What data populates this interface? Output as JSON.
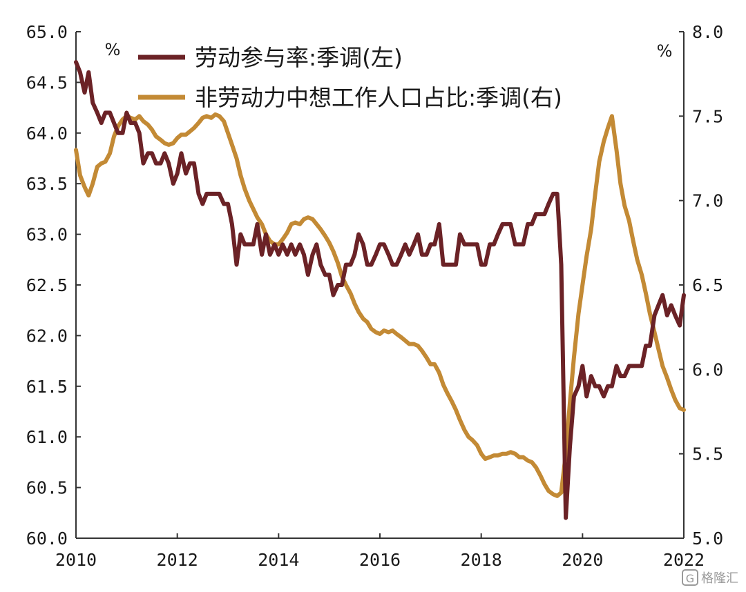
{
  "chart_data": {
    "type": "line",
    "title": "",
    "left_axis": {
      "unit": "%",
      "ylim": [
        60.0,
        65.0
      ],
      "ticks": [
        "60.0",
        "60.5",
        "61.0",
        "61.5",
        "62.0",
        "62.5",
        "63.0",
        "63.5",
        "64.0",
        "64.5",
        "65.0"
      ]
    },
    "right_axis": {
      "unit": "%",
      "ylim": [
        5.0,
        8.0
      ],
      "ticks": [
        "5.0",
        "5.5",
        "6.0",
        "6.5",
        "7.0",
        "7.5",
        "8.0"
      ]
    },
    "x_axis": {
      "xlim": [
        2010.0,
        2022.0
      ],
      "tick_labels": [
        "2010",
        "2012",
        "2014",
        "2016",
        "2018",
        "2020",
        "2022"
      ]
    },
    "grid": false,
    "legend_position": "top",
    "series": [
      {
        "name": "劳动参与率:季调(左)",
        "axis": "left",
        "color": "#6b2226",
        "points": [
          [
            2010.0,
            64.7
          ],
          [
            2010.08,
            64.6
          ],
          [
            2010.17,
            64.4
          ],
          [
            2010.25,
            64.6
          ],
          [
            2010.33,
            64.3
          ],
          [
            2010.42,
            64.2
          ],
          [
            2010.5,
            64.1
          ],
          [
            2010.58,
            64.2
          ],
          [
            2010.67,
            64.2
          ],
          [
            2010.75,
            64.1
          ],
          [
            2010.83,
            64.0
          ],
          [
            2010.92,
            64.0
          ],
          [
            2011.0,
            64.2
          ],
          [
            2011.08,
            64.1
          ],
          [
            2011.17,
            64.1
          ],
          [
            2011.25,
            64.0
          ],
          [
            2011.33,
            63.7
          ],
          [
            2011.42,
            63.8
          ],
          [
            2011.5,
            63.8
          ],
          [
            2011.58,
            63.7
          ],
          [
            2011.67,
            63.7
          ],
          [
            2011.75,
            63.8
          ],
          [
            2011.83,
            63.7
          ],
          [
            2011.92,
            63.5
          ],
          [
            2012.0,
            63.6
          ],
          [
            2012.08,
            63.8
          ],
          [
            2012.17,
            63.6
          ],
          [
            2012.25,
            63.7
          ],
          [
            2012.33,
            63.7
          ],
          [
            2012.42,
            63.4
          ],
          [
            2012.5,
            63.3
          ],
          [
            2012.58,
            63.4
          ],
          [
            2012.67,
            63.4
          ],
          [
            2012.75,
            63.4
          ],
          [
            2012.83,
            63.4
          ],
          [
            2012.92,
            63.3
          ],
          [
            2013.0,
            63.3
          ],
          [
            2013.08,
            63.1
          ],
          [
            2013.17,
            62.7
          ],
          [
            2013.25,
            63.0
          ],
          [
            2013.33,
            62.9
          ],
          [
            2013.42,
            62.9
          ],
          [
            2013.5,
            62.9
          ],
          [
            2013.58,
            63.1
          ],
          [
            2013.67,
            62.8
          ],
          [
            2013.75,
            63.0
          ],
          [
            2013.83,
            62.8
          ],
          [
            2013.92,
            62.9
          ],
          [
            2014.0,
            62.8
          ],
          [
            2014.08,
            62.9
          ],
          [
            2014.17,
            62.8
          ],
          [
            2014.25,
            62.9
          ],
          [
            2014.33,
            62.8
          ],
          [
            2014.42,
            62.9
          ],
          [
            2014.5,
            62.8
          ],
          [
            2014.58,
            62.6
          ],
          [
            2014.67,
            62.8
          ],
          [
            2014.75,
            62.9
          ],
          [
            2014.83,
            62.7
          ],
          [
            2014.92,
            62.6
          ],
          [
            2015.0,
            62.6
          ],
          [
            2015.08,
            62.4
          ],
          [
            2015.17,
            62.5
          ],
          [
            2015.25,
            62.5
          ],
          [
            2015.33,
            62.7
          ],
          [
            2015.42,
            62.7
          ],
          [
            2015.5,
            62.8
          ],
          [
            2015.58,
            63.0
          ],
          [
            2015.67,
            62.9
          ],
          [
            2015.75,
            62.7
          ],
          [
            2015.83,
            62.7
          ],
          [
            2015.92,
            62.8
          ],
          [
            2016.0,
            62.9
          ],
          [
            2016.08,
            62.9
          ],
          [
            2016.17,
            62.8
          ],
          [
            2016.25,
            62.7
          ],
          [
            2016.33,
            62.7
          ],
          [
            2016.42,
            62.8
          ],
          [
            2016.5,
            62.9
          ],
          [
            2016.58,
            62.8
          ],
          [
            2016.67,
            62.9
          ],
          [
            2016.75,
            63.0
          ],
          [
            2016.83,
            62.8
          ],
          [
            2016.92,
            62.8
          ],
          [
            2017.0,
            62.9
          ],
          [
            2017.08,
            62.9
          ],
          [
            2017.17,
            63.1
          ],
          [
            2017.25,
            62.7
          ],
          [
            2017.33,
            62.7
          ],
          [
            2017.42,
            62.7
          ],
          [
            2017.5,
            62.7
          ],
          [
            2017.58,
            63.0
          ],
          [
            2017.67,
            62.9
          ],
          [
            2017.75,
            62.9
          ],
          [
            2017.83,
            62.9
          ],
          [
            2017.92,
            62.9
          ],
          [
            2018.0,
            62.7
          ],
          [
            2018.08,
            62.7
          ],
          [
            2018.17,
            62.9
          ],
          [
            2018.25,
            62.9
          ],
          [
            2018.33,
            63.0
          ],
          [
            2018.42,
            63.1
          ],
          [
            2018.5,
            63.1
          ],
          [
            2018.58,
            63.1
          ],
          [
            2018.67,
            62.9
          ],
          [
            2018.75,
            62.9
          ],
          [
            2018.83,
            62.9
          ],
          [
            2018.92,
            63.1
          ],
          [
            2019.0,
            63.1
          ],
          [
            2019.08,
            63.2
          ],
          [
            2019.17,
            63.2
          ],
          [
            2019.25,
            63.2
          ],
          [
            2019.33,
            63.3
          ],
          [
            2019.42,
            63.4
          ],
          [
            2019.5,
            63.4
          ],
          [
            2019.58,
            62.7
          ],
          [
            2019.67,
            60.2
          ],
          [
            2019.75,
            60.9
          ],
          [
            2019.83,
            61.4
          ],
          [
            2019.92,
            61.5
          ],
          [
            2020.0,
            61.7
          ],
          [
            2020.08,
            61.4
          ],
          [
            2020.17,
            61.6
          ],
          [
            2020.25,
            61.5
          ],
          [
            2020.33,
            61.5
          ],
          [
            2020.42,
            61.4
          ],
          [
            2020.5,
            61.5
          ],
          [
            2020.58,
            61.5
          ],
          [
            2020.67,
            61.7
          ],
          [
            2020.75,
            61.6
          ],
          [
            2020.83,
            61.6
          ],
          [
            2020.92,
            61.7
          ],
          [
            2021.0,
            61.7
          ],
          [
            2021.08,
            61.7
          ],
          [
            2021.17,
            61.7
          ],
          [
            2021.25,
            61.9
          ],
          [
            2021.33,
            61.9
          ],
          [
            2021.42,
            62.2
          ],
          [
            2021.5,
            62.3
          ],
          [
            2021.58,
            62.4
          ],
          [
            2021.67,
            62.2
          ],
          [
            2021.75,
            62.3
          ],
          [
            2021.83,
            62.2
          ],
          [
            2021.92,
            62.1
          ],
          [
            2022.0,
            62.4
          ]
        ]
      },
      {
        "name": "非劳动力中想工作人口占比:季调(右)",
        "axis": "right",
        "color": "#c38a35",
        "points": [
          [
            2010.0,
            7.3
          ],
          [
            2010.08,
            7.15
          ],
          [
            2010.17,
            7.08
          ],
          [
            2010.25,
            7.03
          ],
          [
            2010.33,
            7.1
          ],
          [
            2010.42,
            7.2
          ],
          [
            2010.5,
            7.22
          ],
          [
            2010.58,
            7.23
          ],
          [
            2010.67,
            7.28
          ],
          [
            2010.75,
            7.38
          ],
          [
            2010.83,
            7.44
          ],
          [
            2010.92,
            7.48
          ],
          [
            2011.0,
            7.5
          ],
          [
            2011.08,
            7.49
          ],
          [
            2011.17,
            7.48
          ],
          [
            2011.25,
            7.5
          ],
          [
            2011.33,
            7.47
          ],
          [
            2011.42,
            7.45
          ],
          [
            2011.5,
            7.42
          ],
          [
            2011.58,
            7.38
          ],
          [
            2011.67,
            7.36
          ],
          [
            2011.75,
            7.34
          ],
          [
            2011.83,
            7.33
          ],
          [
            2011.92,
            7.34
          ],
          [
            2012.0,
            7.37
          ],
          [
            2012.08,
            7.39
          ],
          [
            2012.17,
            7.39
          ],
          [
            2012.25,
            7.41
          ],
          [
            2012.33,
            7.43
          ],
          [
            2012.42,
            7.46
          ],
          [
            2012.5,
            7.49
          ],
          [
            2012.58,
            7.5
          ],
          [
            2012.67,
            7.49
          ],
          [
            2012.75,
            7.51
          ],
          [
            2012.83,
            7.5
          ],
          [
            2012.92,
            7.47
          ],
          [
            2013.0,
            7.4
          ],
          [
            2013.08,
            7.33
          ],
          [
            2013.17,
            7.25
          ],
          [
            2013.25,
            7.15
          ],
          [
            2013.33,
            7.07
          ],
          [
            2013.42,
            7.0
          ],
          [
            2013.5,
            6.95
          ],
          [
            2013.58,
            6.9
          ],
          [
            2013.67,
            6.86
          ],
          [
            2013.75,
            6.8
          ],
          [
            2013.83,
            6.76
          ],
          [
            2013.92,
            6.74
          ],
          [
            2014.0,
            6.74
          ],
          [
            2014.08,
            6.77
          ],
          [
            2014.17,
            6.81
          ],
          [
            2014.25,
            6.86
          ],
          [
            2014.33,
            6.87
          ],
          [
            2014.42,
            6.86
          ],
          [
            2014.5,
            6.89
          ],
          [
            2014.58,
            6.9
          ],
          [
            2014.67,
            6.89
          ],
          [
            2014.75,
            6.86
          ],
          [
            2014.83,
            6.83
          ],
          [
            2014.92,
            6.79
          ],
          [
            2015.0,
            6.75
          ],
          [
            2015.08,
            6.7
          ],
          [
            2015.17,
            6.63
          ],
          [
            2015.25,
            6.55
          ],
          [
            2015.33,
            6.5
          ],
          [
            2015.42,
            6.45
          ],
          [
            2015.5,
            6.39
          ],
          [
            2015.58,
            6.34
          ],
          [
            2015.67,
            6.3
          ],
          [
            2015.75,
            6.28
          ],
          [
            2015.83,
            6.24
          ],
          [
            2015.92,
            6.22
          ],
          [
            2016.0,
            6.21
          ],
          [
            2016.08,
            6.23
          ],
          [
            2016.17,
            6.22
          ],
          [
            2016.25,
            6.23
          ],
          [
            2016.33,
            6.21
          ],
          [
            2016.42,
            6.19
          ],
          [
            2016.5,
            6.17
          ],
          [
            2016.58,
            6.15
          ],
          [
            2016.67,
            6.15
          ],
          [
            2016.75,
            6.14
          ],
          [
            2016.83,
            6.11
          ],
          [
            2016.92,
            6.07
          ],
          [
            2017.0,
            6.03
          ],
          [
            2017.08,
            6.03
          ],
          [
            2017.17,
            5.98
          ],
          [
            2017.25,
            5.91
          ],
          [
            2017.33,
            5.86
          ],
          [
            2017.42,
            5.81
          ],
          [
            2017.5,
            5.76
          ],
          [
            2017.58,
            5.7
          ],
          [
            2017.67,
            5.64
          ],
          [
            2017.75,
            5.6
          ],
          [
            2017.83,
            5.58
          ],
          [
            2017.92,
            5.55
          ],
          [
            2018.0,
            5.5
          ],
          [
            2018.08,
            5.47
          ],
          [
            2018.17,
            5.48
          ],
          [
            2018.25,
            5.49
          ],
          [
            2018.33,
            5.49
          ],
          [
            2018.42,
            5.5
          ],
          [
            2018.5,
            5.5
          ],
          [
            2018.58,
            5.51
          ],
          [
            2018.67,
            5.5
          ],
          [
            2018.75,
            5.48
          ],
          [
            2018.83,
            5.48
          ],
          [
            2018.92,
            5.46
          ],
          [
            2019.0,
            5.45
          ],
          [
            2019.08,
            5.42
          ],
          [
            2019.17,
            5.37
          ],
          [
            2019.25,
            5.32
          ],
          [
            2019.33,
            5.28
          ],
          [
            2019.42,
            5.26
          ],
          [
            2019.5,
            5.25
          ],
          [
            2019.58,
            5.27
          ],
          [
            2019.67,
            5.5
          ],
          [
            2019.75,
            5.8
          ],
          [
            2019.83,
            6.07
          ],
          [
            2019.92,
            6.33
          ],
          [
            2020.0,
            6.5
          ],
          [
            2020.08,
            6.67
          ],
          [
            2020.17,
            6.83
          ],
          [
            2020.25,
            7.04
          ],
          [
            2020.33,
            7.23
          ],
          [
            2020.42,
            7.35
          ],
          [
            2020.5,
            7.43
          ],
          [
            2020.58,
            7.5
          ],
          [
            2020.67,
            7.3
          ],
          [
            2020.75,
            7.1
          ],
          [
            2020.83,
            6.97
          ],
          [
            2020.92,
            6.88
          ],
          [
            2021.0,
            6.76
          ],
          [
            2021.08,
            6.65
          ],
          [
            2021.17,
            6.56
          ],
          [
            2021.25,
            6.45
          ],
          [
            2021.33,
            6.33
          ],
          [
            2021.42,
            6.22
          ],
          [
            2021.5,
            6.12
          ],
          [
            2021.58,
            6.02
          ],
          [
            2021.67,
            5.95
          ],
          [
            2021.75,
            5.88
          ],
          [
            2021.83,
            5.82
          ],
          [
            2021.92,
            5.77
          ],
          [
            2022.0,
            5.76
          ]
        ]
      }
    ]
  },
  "watermark": {
    "text": "格隆汇",
    "icon": "G-logo-icon"
  }
}
